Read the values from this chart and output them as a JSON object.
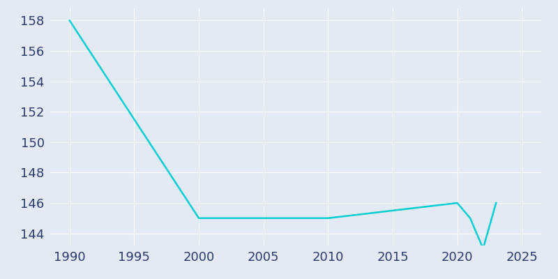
{
  "years": [
    1990,
    2000,
    2010,
    2020,
    2021,
    2022,
    2023
  ],
  "population": [
    158,
    145,
    145,
    146,
    145,
    143,
    146
  ],
  "line_color": "#00CED1",
  "bg_color": "#E3EAF4",
  "outer_bg": "#E3EAF4",
  "grid_color": "#FFFFFF",
  "tick_color": "#2B3A6B",
  "ylim": [
    143.2,
    158.8
  ],
  "xlim": [
    1988.5,
    2026.5
  ],
  "yticks": [
    144,
    146,
    148,
    150,
    152,
    154,
    156,
    158
  ],
  "xticks": [
    1990,
    1995,
    2000,
    2005,
    2010,
    2015,
    2020,
    2025
  ],
  "linewidth": 1.8,
  "tick_fontsize": 13
}
